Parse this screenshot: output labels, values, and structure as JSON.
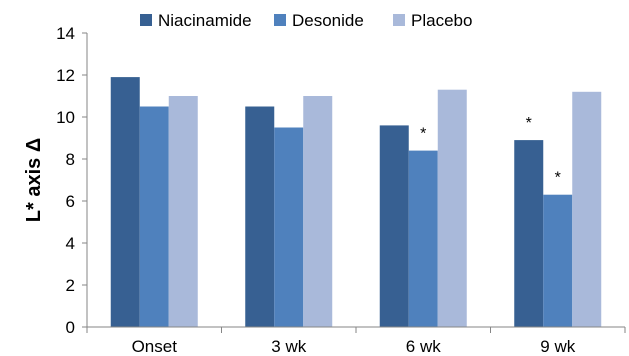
{
  "chart_data": {
    "type": "bar",
    "title": "",
    "xlabel": "",
    "ylabel": "L* axis Δ",
    "ylim": [
      0,
      14
    ],
    "yticks": [
      0,
      2,
      4,
      6,
      8,
      10,
      12,
      14
    ],
    "grid": false,
    "legend_position": "top",
    "categories": [
      "Onset",
      "3 wk",
      "6 wk",
      "9 wk"
    ],
    "series": [
      {
        "name": "Niacinamide",
        "color": "#376092",
        "values": [
          11.9,
          10.5,
          9.6,
          8.9
        ],
        "markers": [
          "",
          "",
          "",
          "*"
        ]
      },
      {
        "name": "Desonide",
        "color": "#4f81bd",
        "values": [
          10.5,
          9.5,
          8.4,
          6.3
        ],
        "markers": [
          "",
          "",
          "*",
          "*"
        ]
      },
      {
        "name": "Placebo",
        "color": "#a9b9da",
        "values": [
          11.0,
          11.0,
          11.3,
          11.2
        ],
        "markers": [
          "",
          "",
          "",
          ""
        ]
      }
    ]
  }
}
